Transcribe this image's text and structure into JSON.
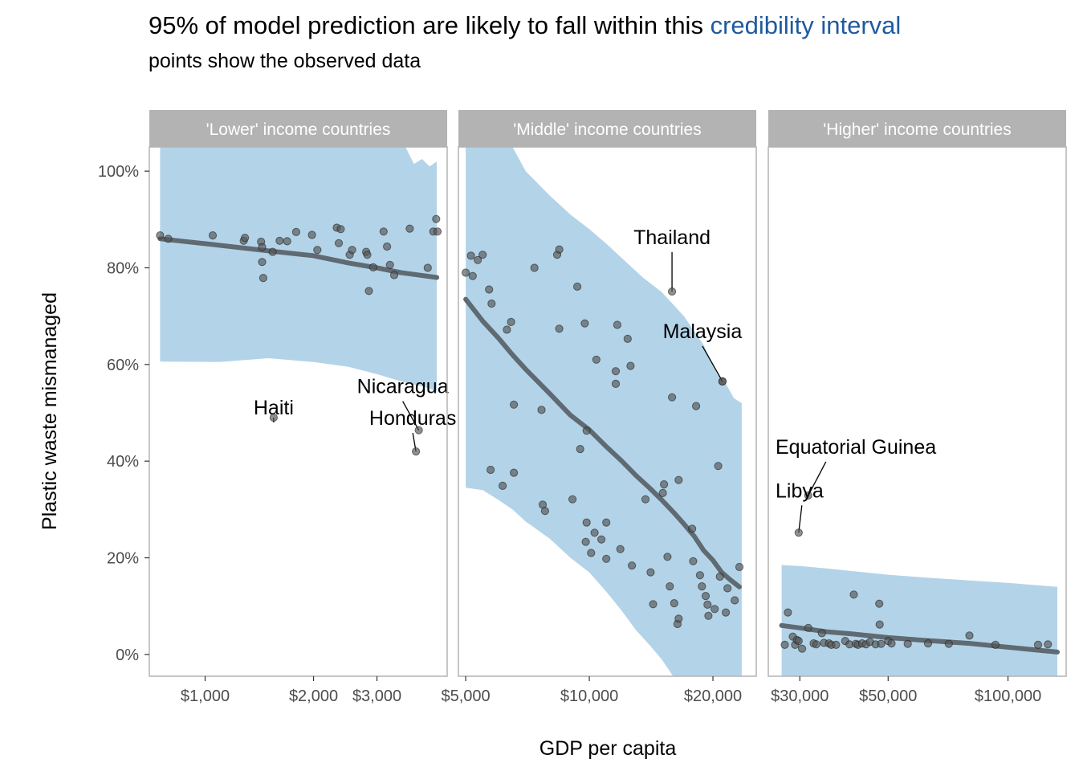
{
  "title": {
    "prefix": "95% of model prediction are likely to fall within this ",
    "highlight": "credibility interval",
    "highlight_color": "#1f5aa0"
  },
  "subtitle": "points show the observed data",
  "colors": {
    "ribbon": "#b3d4e8",
    "line": "#5f6a72",
    "point": "#555555",
    "strip": "#b3b3b3",
    "panel_border": "#b3b3b3"
  },
  "chart_data": {
    "type": "scatter",
    "xlabel": "GDP per capita",
    "ylabel": "Plastic waste mismanaged",
    "y_scale": "linear",
    "x_scale": "log",
    "ylim": [
      -4.5,
      105
    ],
    "y_ticks": [
      0,
      20,
      40,
      60,
      80,
      100
    ],
    "y_tick_labels": [
      "0%",
      "20%",
      "40%",
      "60%",
      "80%",
      "100%"
    ],
    "grid": false,
    "panels": [
      {
        "strip": "'Lower' income countries",
        "xlim": [
          700,
          4700
        ],
        "x_ticks": [
          1000,
          2000,
          3000
        ],
        "x_tick_labels": [
          "$1,000",
          "$2,000",
          "$3,000"
        ],
        "ribbon": {
          "x_range": [
            750,
            4400
          ],
          "upper": [
            [
              750,
              105
            ],
            [
              3600,
              105
            ],
            [
              3800,
              101.5
            ],
            [
              4000,
              102.5
            ],
            [
              4200,
              101
            ],
            [
              4400,
              102
            ]
          ],
          "lower": [
            [
              750,
              60.6
            ],
            [
              1100,
              60.5
            ],
            [
              1500,
              61.3
            ],
            [
              2000,
              60.5
            ],
            [
              2500,
              59.5
            ],
            [
              3000,
              58
            ],
            [
              3500,
              56.5
            ],
            [
              4000,
              55.5
            ],
            [
              4400,
              54.5
            ]
          ]
        },
        "trend": [
          [
            750,
            86
          ],
          [
            1000,
            85
          ],
          [
            1500,
            83.5
          ],
          [
            2000,
            82.5
          ],
          [
            2500,
            81
          ],
          [
            3000,
            80
          ],
          [
            3500,
            79
          ],
          [
            4400,
            78
          ]
        ],
        "points": [
          [
            750,
            86.7
          ],
          [
            790,
            86
          ],
          [
            1050,
            86.7
          ],
          [
            1280,
            85.6
          ],
          [
            1290,
            86.2
          ],
          [
            1430,
            85.4
          ],
          [
            1440,
            84.3
          ],
          [
            1440,
            81.2
          ],
          [
            1450,
            77.9
          ],
          [
            1540,
            83.3
          ],
          [
            1610,
            85.6
          ],
          [
            1690,
            85.5
          ],
          [
            1790,
            87.4
          ],
          [
            1980,
            86.8
          ],
          [
            2050,
            83.7
          ],
          [
            2320,
            88.3
          ],
          [
            2350,
            85.1
          ],
          [
            2380,
            88
          ],
          [
            2520,
            82.7
          ],
          [
            2560,
            83.7
          ],
          [
            2800,
            83.3
          ],
          [
            2820,
            82.7
          ],
          [
            2850,
            75.2
          ],
          [
            2930,
            80.1
          ],
          [
            3130,
            87.5
          ],
          [
            3200,
            84.4
          ],
          [
            3260,
            80.6
          ],
          [
            3350,
            78.5
          ],
          [
            3700,
            88.1
          ],
          [
            4150,
            80
          ],
          [
            4300,
            87.5
          ],
          [
            4380,
            90.1
          ],
          [
            4420,
            87.5
          ]
        ],
        "labels": [
          {
            "text": "Haiti",
            "x": 1550,
            "y": 49
          },
          {
            "text": "Nicaragua",
            "x": 3920,
            "y": 46.4
          },
          {
            "text": "Honduras",
            "x": 3850,
            "y": 42
          }
        ]
      },
      {
        "strip": "'Middle' income countries",
        "xlim": [
          4800,
          25500
        ],
        "x_ticks": [
          5000,
          10000,
          20000
        ],
        "x_tick_labels": [
          "$5,000",
          "$10,000",
          "$20,000"
        ],
        "ribbon": {
          "x_range": [
            5000,
            23500
          ],
          "upper": [
            [
              5000,
              105
            ],
            [
              6500,
              105
            ],
            [
              7000,
              100
            ],
            [
              8000,
              95
            ],
            [
              9000,
              91
            ],
            [
              10000,
              88
            ],
            [
              11000,
              85
            ],
            [
              12000,
              82
            ],
            [
              13500,
              78
            ],
            [
              15000,
              75
            ],
            [
              17000,
              70
            ],
            [
              19000,
              64
            ],
            [
              20500,
              58
            ],
            [
              21500,
              56
            ],
            [
              22500,
              53
            ],
            [
              23500,
              52
            ]
          ],
          "lower": [
            [
              5000,
              34.5
            ],
            [
              5500,
              34
            ],
            [
              6000,
              32
            ],
            [
              6500,
              30
            ],
            [
              7000,
              27.5
            ],
            [
              8000,
              24
            ],
            [
              9000,
              20
            ],
            [
              10000,
              17
            ],
            [
              11000,
              13
            ],
            [
              12000,
              9
            ],
            [
              13000,
              5
            ],
            [
              14000,
              2
            ],
            [
              15000,
              -1
            ],
            [
              16000,
              -4.5
            ],
            [
              23500,
              -4.5
            ]
          ]
        },
        "trend": [
          [
            5000,
            73.5
          ],
          [
            5500,
            69
          ],
          [
            6000,
            65.5
          ],
          [
            6500,
            62
          ],
          [
            7000,
            59
          ],
          [
            8000,
            54
          ],
          [
            9000,
            49.5
          ],
          [
            10000,
            46.5
          ],
          [
            11000,
            43
          ],
          [
            12000,
            40
          ],
          [
            13000,
            37
          ],
          [
            14000,
            34.5
          ],
          [
            15000,
            32
          ],
          [
            16000,
            29.5
          ],
          [
            17000,
            27
          ],
          [
            18000,
            24.5
          ],
          [
            19000,
            21.5
          ],
          [
            20000,
            19.5
          ],
          [
            21000,
            17
          ],
          [
            22000,
            15.5
          ],
          [
            23200,
            14
          ]
        ],
        "points": [
          [
            5000,
            79
          ],
          [
            5150,
            82.5
          ],
          [
            5200,
            78.3
          ],
          [
            5350,
            81.6
          ],
          [
            5500,
            82.7
          ],
          [
            5700,
            75.5
          ],
          [
            5780,
            72.6
          ],
          [
            5750,
            38.2
          ],
          [
            6150,
            34.9
          ],
          [
            6300,
            67.2
          ],
          [
            6450,
            68.8
          ],
          [
            6550,
            51.7
          ],
          [
            6550,
            37.6
          ],
          [
            7350,
            80
          ],
          [
            7650,
            50.6
          ],
          [
            7700,
            31
          ],
          [
            7800,
            29.7
          ],
          [
            8350,
            82.7
          ],
          [
            8450,
            83.8
          ],
          [
            8450,
            67.4
          ],
          [
            9100,
            32.1
          ],
          [
            9350,
            76.1
          ],
          [
            9500,
            42.5
          ],
          [
            9750,
            68.5
          ],
          [
            9800,
            23.3
          ],
          [
            9850,
            46.3
          ],
          [
            9850,
            27.3
          ],
          [
            10100,
            21
          ],
          [
            10400,
            61
          ],
          [
            10300,
            25.2
          ],
          [
            10700,
            23.8
          ],
          [
            11000,
            27.3
          ],
          [
            11000,
            19.8
          ],
          [
            11600,
            58.6
          ],
          [
            11600,
            56
          ],
          [
            11700,
            68.2
          ],
          [
            11900,
            21.8
          ],
          [
            12400,
            65.3
          ],
          [
            12600,
            59.7
          ],
          [
            12700,
            18.4
          ],
          [
            13700,
            32.1
          ],
          [
            14100,
            17
          ],
          [
            14300,
            10.4
          ],
          [
            15100,
            33.4
          ],
          [
            15200,
            35.2
          ],
          [
            15500,
            20.2
          ],
          [
            15700,
            14.1
          ],
          [
            15900,
            53.2
          ],
          [
            16100,
            10.6
          ],
          [
            16400,
            6.3
          ],
          [
            16500,
            36.1
          ],
          [
            16500,
            7.4
          ],
          [
            17800,
            26
          ],
          [
            17900,
            19.3
          ],
          [
            18200,
            51.4
          ],
          [
            18600,
            16.4
          ],
          [
            18800,
            14.1
          ],
          [
            19200,
            12.1
          ],
          [
            19400,
            10.3
          ],
          [
            19500,
            8
          ],
          [
            20200,
            9.4
          ],
          [
            20600,
            39
          ],
          [
            20800,
            16.1
          ],
          [
            21100,
            56.5
          ],
          [
            21500,
            8.7
          ],
          [
            21700,
            13.7
          ],
          [
            22600,
            11.2
          ],
          [
            23200,
            18.1
          ]
        ],
        "labels": [
          {
            "text": "Thailand",
            "x": 15900,
            "y": 75.1
          },
          {
            "text": "Malaysia",
            "x": 21100,
            "y": 56.5
          }
        ]
      },
      {
        "strip": "'Higher' income countries",
        "xlim": [
          25000,
          140000
        ],
        "x_ticks": [
          30000,
          50000,
          100000
        ],
        "x_tick_labels": [
          "$30,000",
          "$50,000",
          "$100,000"
        ],
        "ribbon": {
          "x_range": [
            27000,
            133000
          ],
          "upper": [
            [
              27000,
              18.5
            ],
            [
              30000,
              18.3
            ],
            [
              35000,
              17.8
            ],
            [
              40000,
              17.3
            ],
            [
              50000,
              16.5
            ],
            [
              60000,
              16
            ],
            [
              80000,
              15.3
            ],
            [
              100000,
              14.8
            ],
            [
              120000,
              14.3
            ],
            [
              133000,
              14
            ]
          ],
          "lower": [
            [
              27000,
              -4.5
            ],
            [
              133000,
              -4.5
            ]
          ]
        },
        "trend": [
          [
            27000,
            6
          ],
          [
            30000,
            5.5
          ],
          [
            35000,
            4.7
          ],
          [
            40000,
            4.3
          ],
          [
            50000,
            3.5
          ],
          [
            60000,
            3
          ],
          [
            80000,
            2.3
          ],
          [
            100000,
            1.5
          ],
          [
            133000,
            0.5
          ]
        ],
        "points": [
          [
            27500,
            2
          ],
          [
            28000,
            8.7
          ],
          [
            28800,
            3.7
          ],
          [
            29200,
            2
          ],
          [
            29500,
            3
          ],
          [
            29800,
            2.8
          ],
          [
            30400,
            1.2
          ],
          [
            31500,
            5.5
          ],
          [
            32500,
            2.3
          ],
          [
            33000,
            2.1
          ],
          [
            34100,
            4.4
          ],
          [
            34500,
            2.4
          ],
          [
            35500,
            2.3
          ],
          [
            36000,
            2
          ],
          [
            37000,
            2
          ],
          [
            39000,
            2.8
          ],
          [
            40000,
            2.1
          ],
          [
            41000,
            12.4
          ],
          [
            41500,
            2.2
          ],
          [
            42000,
            2
          ],
          [
            43000,
            2.3
          ],
          [
            44000,
            2.1
          ],
          [
            45000,
            2.6
          ],
          [
            46500,
            2.1
          ],
          [
            47500,
            10.5
          ],
          [
            47600,
            6.2
          ],
          [
            48000,
            2.2
          ],
          [
            50000,
            2.8
          ],
          [
            51000,
            2.3
          ],
          [
            56000,
            2.2
          ],
          [
            63000,
            2.3
          ],
          [
            71000,
            2.2
          ],
          [
            80000,
            3.9
          ],
          [
            93000,
            2
          ],
          [
            119000,
            2
          ],
          [
            126000,
            2.1
          ]
        ],
        "labels": [
          {
            "text": "Equatorial Guinea",
            "x": 31500,
            "y": 32.9
          },
          {
            "text": "Libya",
            "x": 29800,
            "y": 25.2
          }
        ]
      }
    ]
  }
}
